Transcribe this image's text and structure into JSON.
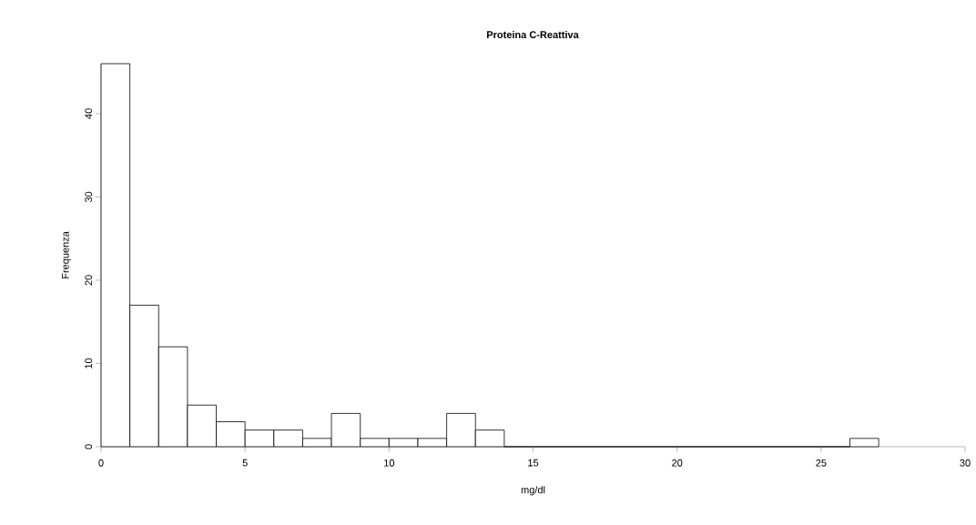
{
  "chart_data": {
    "type": "histogram",
    "title": "Proteina C-Reattiva",
    "xlabel": "mg/dl",
    "ylabel": "Frequenza",
    "bins": [
      0,
      1,
      2,
      3,
      4,
      5,
      6,
      7,
      8,
      9,
      10,
      11,
      12,
      13,
      14,
      15,
      16,
      17,
      18,
      19,
      20,
      21,
      22,
      23,
      24,
      25,
      26,
      27
    ],
    "values": [
      46,
      17,
      12,
      5,
      3,
      2,
      2,
      1,
      4,
      1,
      1,
      1,
      4,
      2,
      0,
      0,
      0,
      0,
      0,
      0,
      0,
      0,
      0,
      0,
      0,
      0,
      1
    ],
    "color": "#ffffff",
    "xlim": [
      0,
      30
    ],
    "ylim": [
      0,
      46
    ],
    "xticks": [
      0,
      5,
      10,
      15,
      20,
      25,
      30
    ],
    "yticks": [
      0,
      10,
      20,
      30,
      40
    ],
    "grid": false
  }
}
